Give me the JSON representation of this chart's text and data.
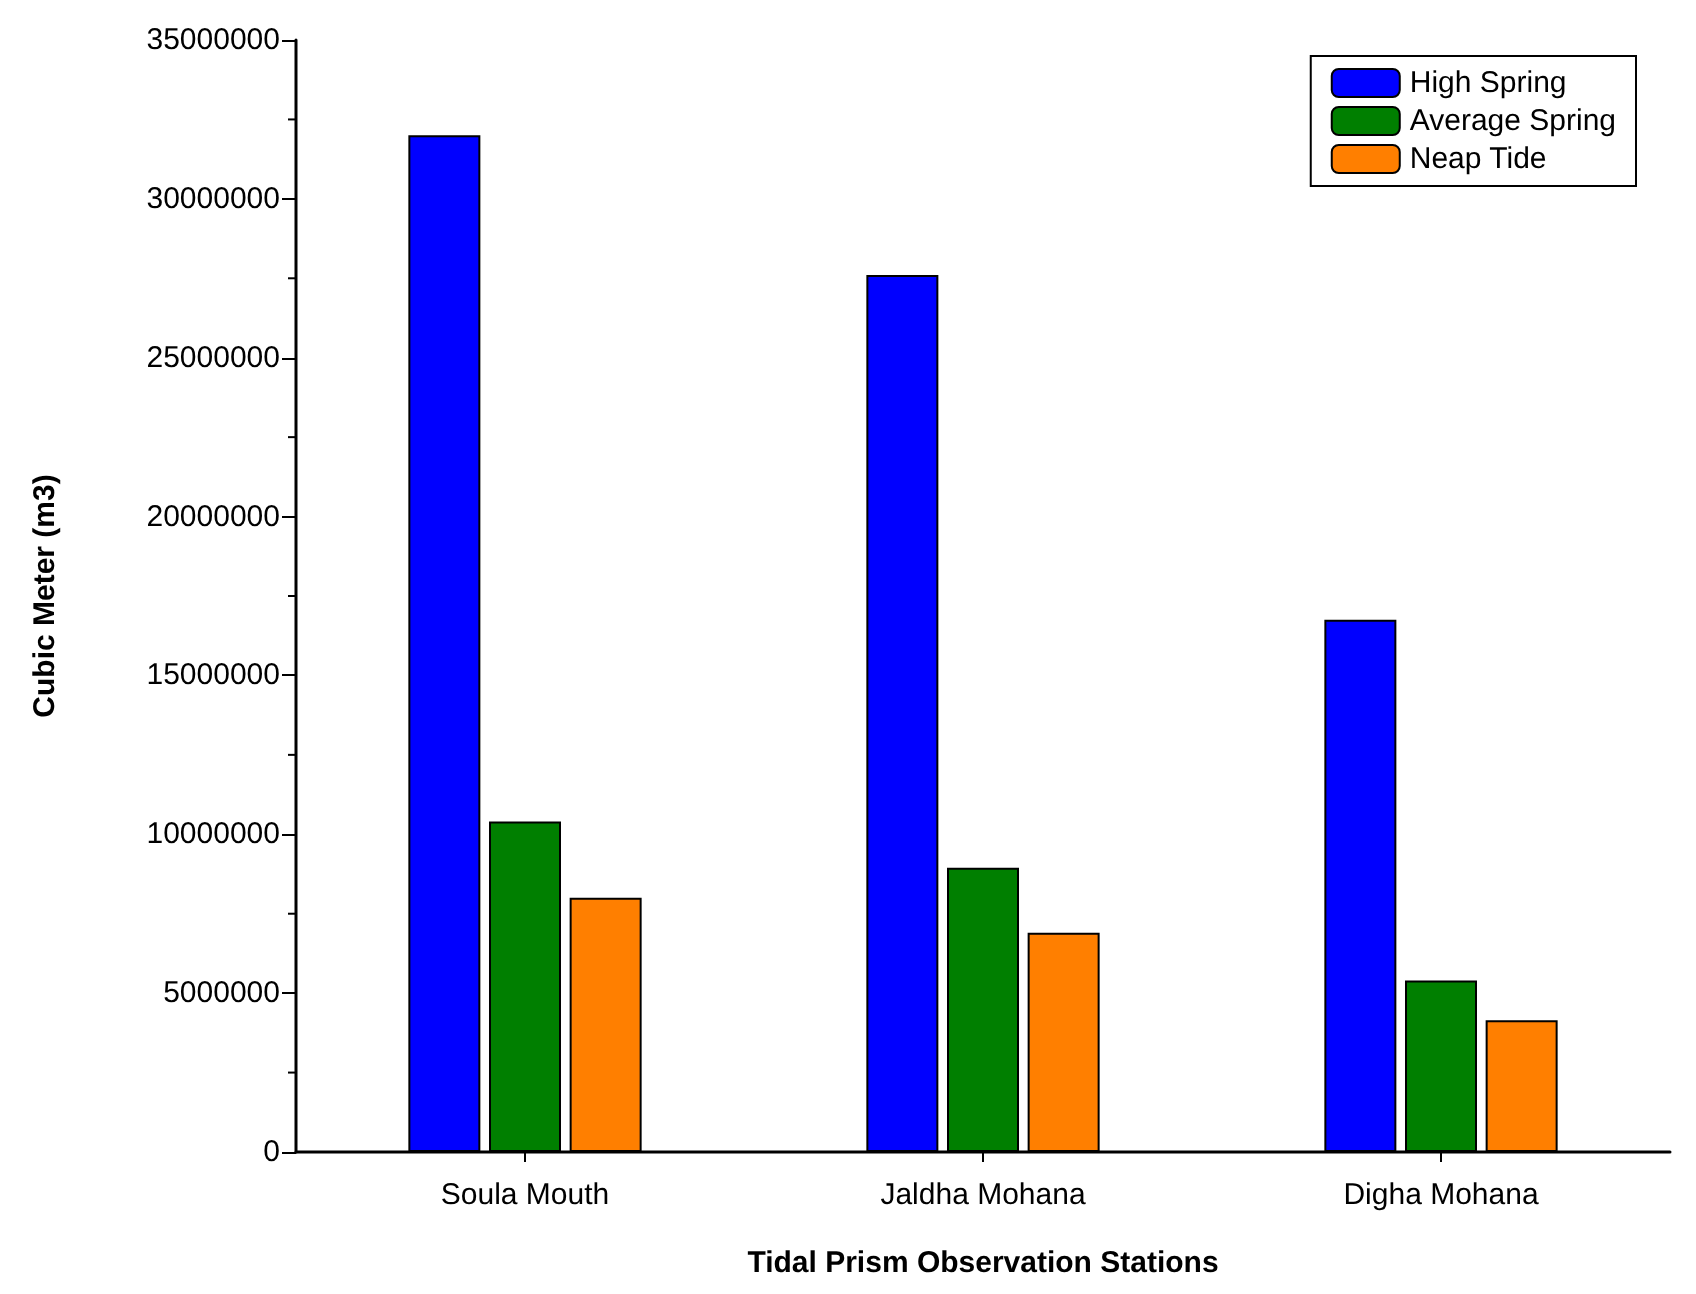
{
  "chart_data": {
    "type": "bar",
    "xlabel": "Tidal Prism Observation Stations",
    "ylabel": "Cubic Meter (m3)",
    "categories": [
      "Soula Mouth",
      "Jaldha Mohana",
      "Digha Mohana"
    ],
    "series": [
      {
        "name": "High Spring",
        "color": "#0000ff",
        "values": [
          32000000,
          27600000,
          16750000
        ]
      },
      {
        "name": "Average Spring",
        "color": "#007f00",
        "values": [
          10400000,
          8950000,
          5400000
        ]
      },
      {
        "name": "Neap Tide",
        "color": "#ff7f00",
        "values": [
          8000000,
          6900000,
          4150000
        ]
      }
    ],
    "ylim": [
      0,
      35000000
    ],
    "yticks": [
      0,
      5000000,
      10000000,
      15000000,
      20000000,
      25000000,
      30000000,
      35000000
    ],
    "grid": false,
    "legend": "top right"
  }
}
